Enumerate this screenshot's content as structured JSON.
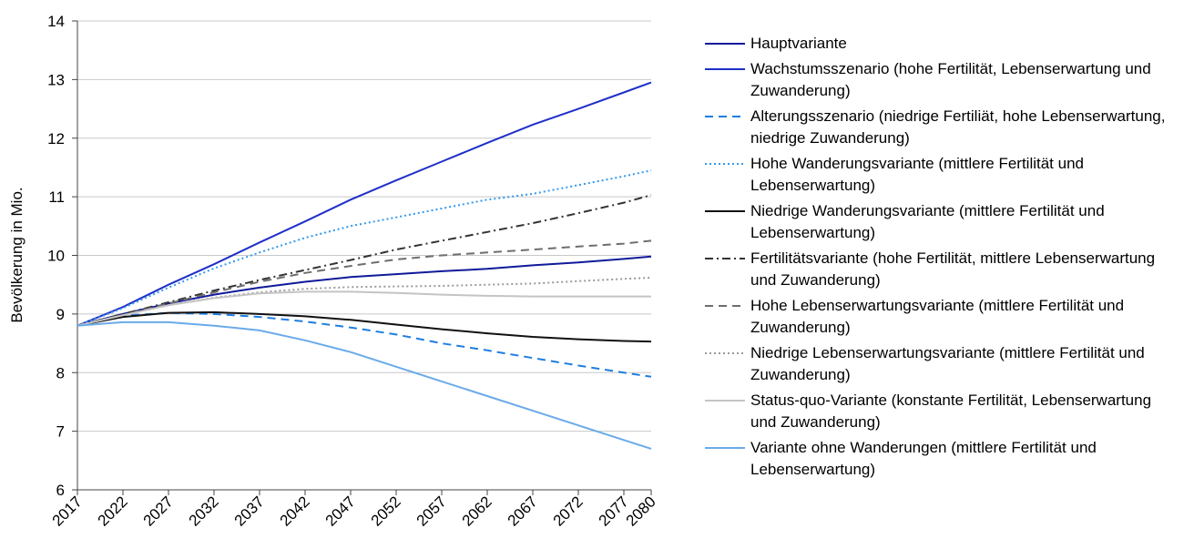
{
  "chart_data": {
    "type": "line",
    "y_label": "Bevölkerung in Mio.",
    "x": [
      2017,
      2022,
      2027,
      2032,
      2037,
      2042,
      2047,
      2052,
      2057,
      2062,
      2067,
      2072,
      2077,
      2080
    ],
    "xlim": [
      2017,
      2080
    ],
    "xticks": [
      2017,
      2022,
      2027,
      2032,
      2037,
      2042,
      2047,
      2052,
      2057,
      2062,
      2067,
      2072,
      2077,
      2080
    ],
    "ylim": [
      6,
      14
    ],
    "yticks": [
      6,
      7,
      8,
      9,
      10,
      11,
      12,
      13,
      14
    ],
    "grid": true,
    "legend": "right",
    "series": [
      {
        "name": "Hauptvariante",
        "color": "#101a9a",
        "dash": "solid",
        "values": [
          8.8,
          9.0,
          9.18,
          9.33,
          9.45,
          9.55,
          9.63,
          9.68,
          9.73,
          9.77,
          9.83,
          9.88,
          9.94,
          9.98
        ]
      },
      {
        "name": "Wachstumsszenario (hohe Fertilität, Lebenserwartung und Zuwanderung)",
        "color": "#1f2fc8",
        "dash": "solid",
        "values": [
          8.8,
          9.12,
          9.5,
          9.85,
          10.22,
          10.58,
          10.95,
          11.28,
          11.6,
          11.92,
          12.23,
          12.5,
          12.78,
          12.95
        ]
      },
      {
        "name": "Alterungsszenario (niedrige Fertiliät, hohe Lebenserwartung, niedrige Zuwanderung)",
        "color": "#1e7ee0",
        "dash": "dashed",
        "values": [
          8.8,
          8.97,
          9.02,
          9.0,
          8.95,
          8.87,
          8.77,
          8.65,
          8.5,
          8.38,
          8.25,
          8.12,
          8.0,
          7.93
        ]
      },
      {
        "name": "Hohe Wanderungsvariante (mittlere Fertilität und Lebenserwartung)",
        "color": "#3399ee",
        "dash": "dotted",
        "values": [
          8.8,
          9.1,
          9.45,
          9.78,
          10.05,
          10.3,
          10.5,
          10.65,
          10.8,
          10.95,
          11.05,
          11.2,
          11.35,
          11.45
        ]
      },
      {
        "name": "Niedrige Wanderungsvariante (mittlere Fertilität und Lebenserwartung)",
        "color": "#111111",
        "dash": "solid",
        "values": [
          8.8,
          8.95,
          9.02,
          9.03,
          9.0,
          8.96,
          8.9,
          8.82,
          8.74,
          8.67,
          8.61,
          8.57,
          8.54,
          8.53
        ]
      },
      {
        "name": "Fertilitätsvariante (hohe Fertilität, mittlere Lebenserwartung und Zuwanderung)",
        "color": "#333333",
        "dash": "dashdot",
        "values": [
          8.8,
          9.0,
          9.2,
          9.4,
          9.58,
          9.75,
          9.92,
          10.1,
          10.25,
          10.4,
          10.55,
          10.72,
          10.9,
          11.03
        ]
      },
      {
        "name": "Hohe Lebenserwartungsvariante (mittlere Fertilität und Zuwanderung)",
        "color": "#6e6e6e",
        "dash": "dashed",
        "values": [
          8.8,
          8.98,
          9.18,
          9.37,
          9.55,
          9.7,
          9.82,
          9.93,
          10.0,
          10.05,
          10.1,
          10.15,
          10.2,
          10.25
        ]
      },
      {
        "name": "Niedrige Lebenserwartungsvariante (mittlere Fertilität und Zuwanderung)",
        "color": "#9a9a9a",
        "dash": "dotted",
        "values": [
          8.8,
          8.98,
          9.15,
          9.28,
          9.37,
          9.43,
          9.46,
          9.47,
          9.48,
          9.5,
          9.52,
          9.56,
          9.6,
          9.62
        ]
      },
      {
        "name": "Status-quo-Variante (konstante Fertilität, Lebenserwartung und Zuwanderung)",
        "color": "#c4c4c4",
        "dash": "solid",
        "values": [
          8.8,
          8.98,
          9.15,
          9.27,
          9.35,
          9.38,
          9.38,
          9.36,
          9.33,
          9.31,
          9.3,
          9.3,
          9.3,
          9.3
        ]
      },
      {
        "name": "Variante ohne Wanderungen (mittlere Fertilität und Lebenserwartung)",
        "color": "#6aaaea",
        "dash": "solid",
        "values": [
          8.8,
          8.86,
          8.86,
          8.8,
          8.72,
          8.55,
          8.35,
          8.1,
          7.85,
          7.6,
          7.35,
          7.1,
          6.85,
          6.7
        ]
      }
    ]
  }
}
